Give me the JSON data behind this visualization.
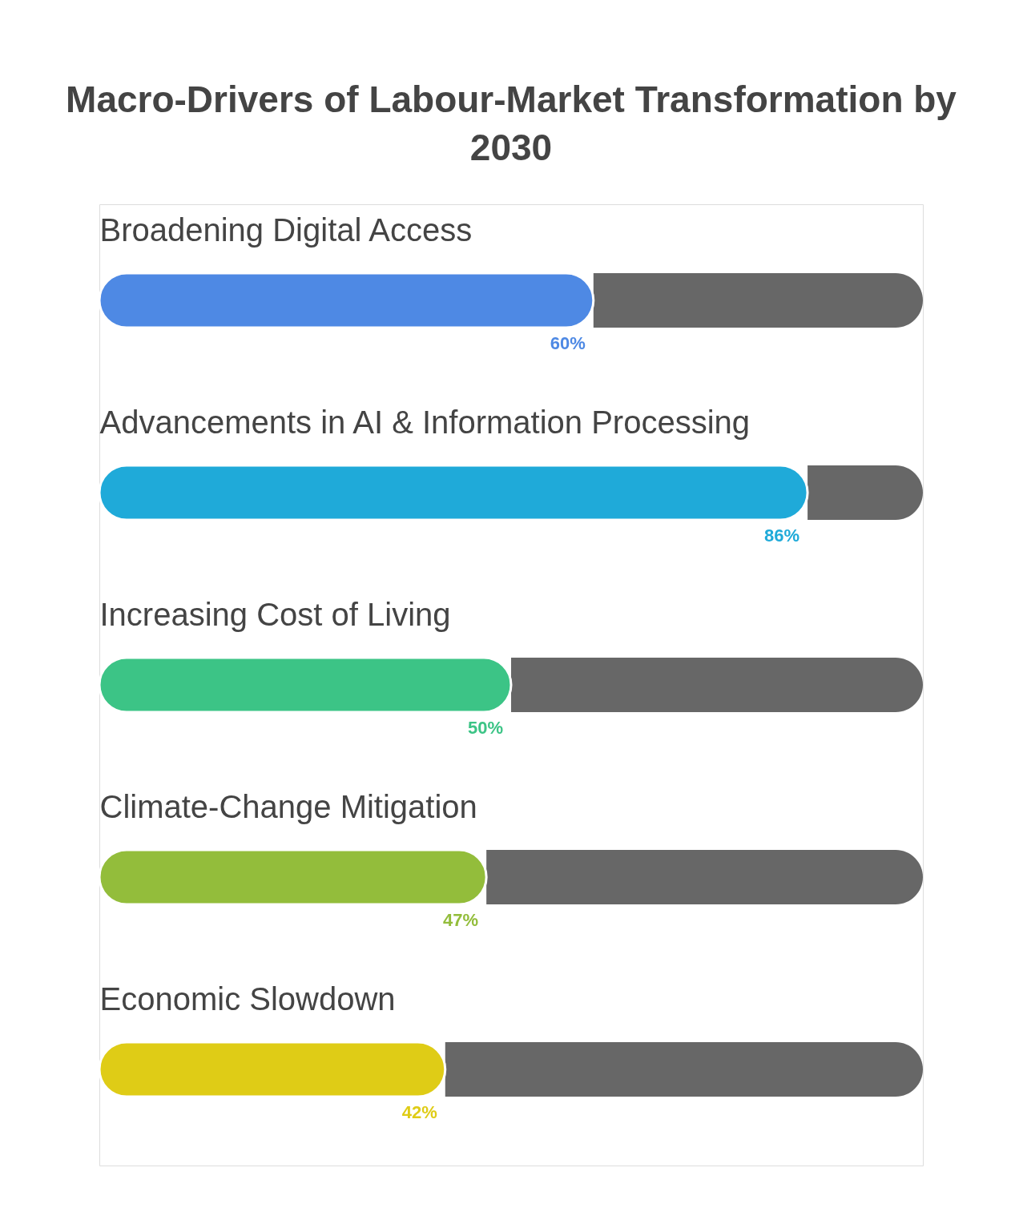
{
  "chart_data": {
    "type": "bar",
    "orientation": "horizontal",
    "stacked": true,
    "title": "Macro-Drivers of Labour-Market Transformation by 2030",
    "categories": [
      "Broadening Digital Access",
      "Advancements in AI & Information Processing",
      "Increasing Cost of Living",
      "Climate-Change Mitigation",
      "Economic Slowdown"
    ],
    "series": [
      {
        "colors": [
          "#4e89e4",
          "#1faad9",
          "#3cc486",
          "#93bd3b",
          "#dfcc16"
        ],
        "values": [
          60,
          86,
          50,
          47,
          42
        ],
        "value_labels": [
          "60%",
          "86%",
          "50%",
          "47%",
          "42%"
        ]
      },
      {
        "color": "#676767",
        "values": [
          40,
          14,
          50,
          53,
          58
        ]
      }
    ],
    "tick_labels": "y",
    "grid": false
  }
}
